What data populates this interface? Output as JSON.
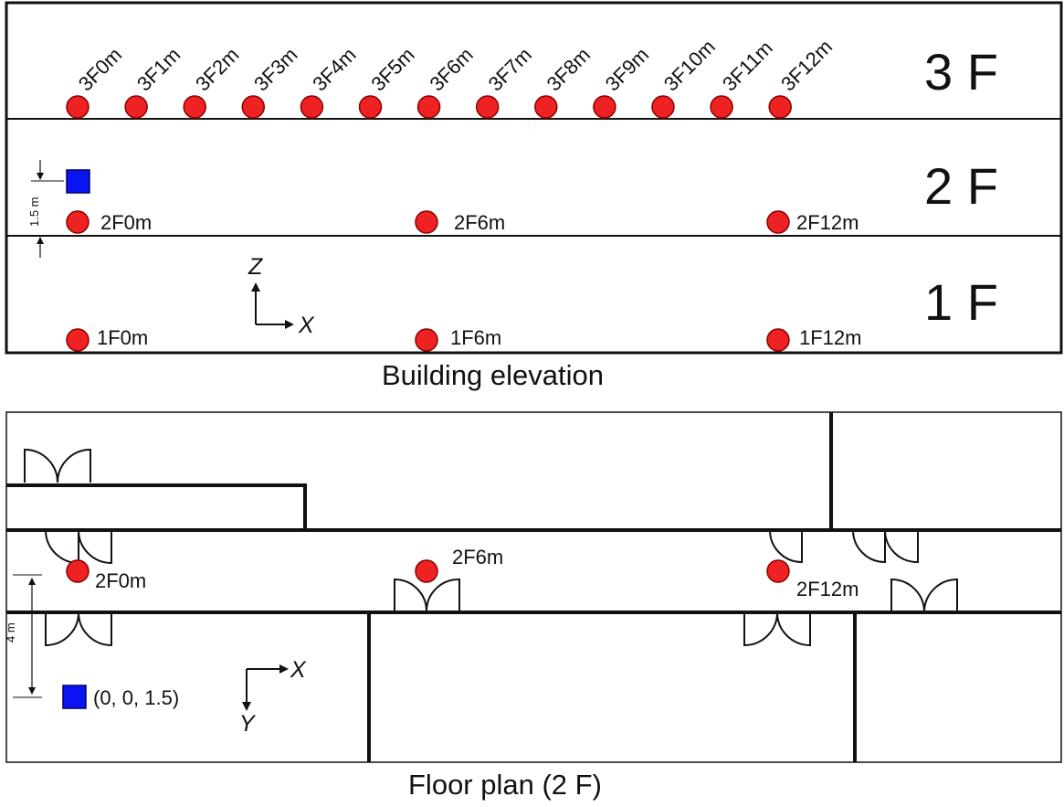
{
  "elevation": {
    "caption": "Building elevation",
    "floor_tags": [
      "3 F",
      "2 F",
      "1 F"
    ],
    "third_floor_points": [
      "3F0m",
      "3F1m",
      "3F2m",
      "3F3m",
      "3F4m",
      "3F5m",
      "3F6m",
      "3F7m",
      "3F8m",
      "3F9m",
      "3F10m",
      "3F11m",
      "3F12m"
    ],
    "second_floor_points": [
      "2F0m",
      "2F6m",
      "2F12m"
    ],
    "first_floor_points": [
      "1F0m",
      "1F6m",
      "1F12m"
    ],
    "height_dimension": "1.5 m",
    "axes": {
      "horizontal": "X",
      "vertical": "Z"
    }
  },
  "floor_plan": {
    "caption": "Floor plan (2 F)",
    "points": [
      "2F0m",
      "2F6m",
      "2F12m"
    ],
    "source_label": "(0, 0, 1.5)",
    "distance_dimension": "4 m",
    "axes": {
      "horizontal": "X",
      "vertical": "Y"
    }
  },
  "colors": {
    "receiver": "#ee2222",
    "source": "#0a14f0",
    "line": "#111111"
  },
  "icons": {
    "receiver": "red-circle-marker",
    "source": "blue-square-marker",
    "door": "double-swing-door-symbol"
  }
}
